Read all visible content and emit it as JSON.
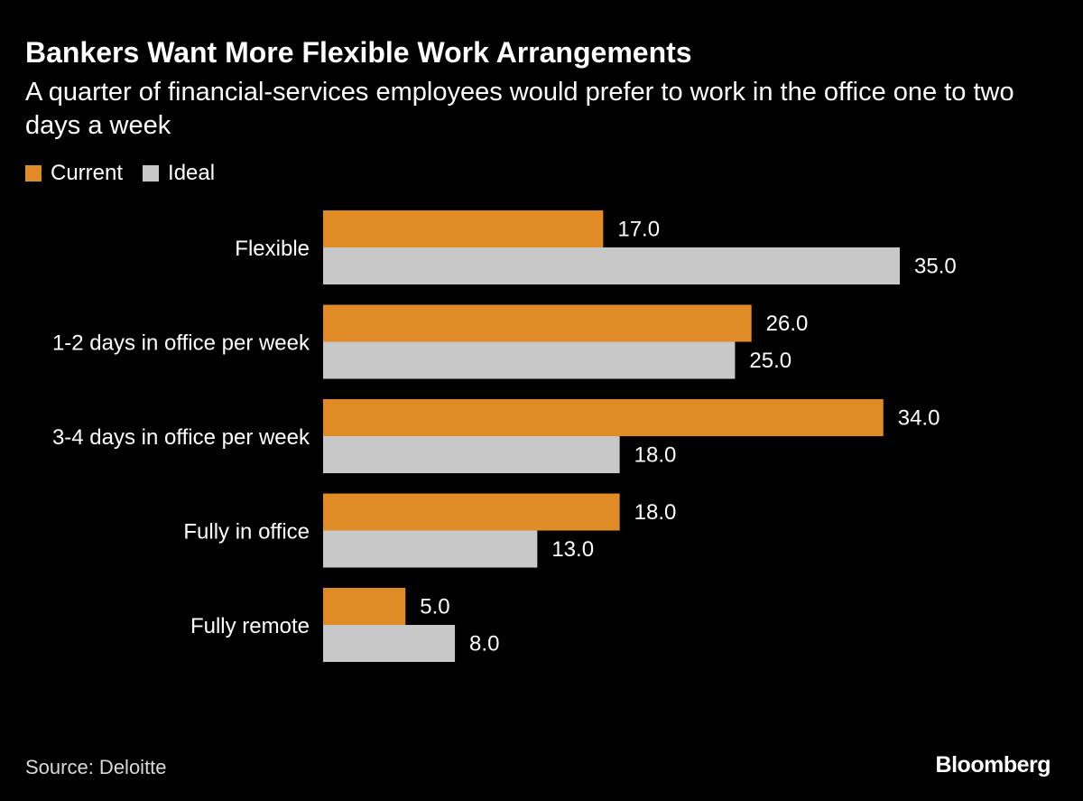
{
  "colors": {
    "background": "#000000",
    "current": "#e08b25",
    "ideal": "#c8c8c8",
    "text": "#ffffff"
  },
  "chart_data": {
    "type": "bar",
    "orientation": "horizontal",
    "title": "Bankers Want More Flexible Work Arrangements",
    "subtitle": "A quarter of financial-services employees would prefer to work in the office one to two days a week",
    "categories": [
      "Flexible",
      "1-2 days in office per week",
      "3-4 days in office per week",
      "Fully in office",
      "Fully remote"
    ],
    "series": [
      {
        "name": "Current",
        "values": [
          17.0,
          26.0,
          34.0,
          18.0,
          5.0
        ]
      },
      {
        "name": "Ideal",
        "values": [
          35.0,
          25.0,
          18.0,
          13.0,
          8.0
        ]
      }
    ],
    "xlim": [
      0,
      35
    ],
    "legend_position": "top-left",
    "grid": false,
    "value_format": "one-decimal"
  },
  "source": "Source: Deloitte",
  "brand": "Bloomberg"
}
